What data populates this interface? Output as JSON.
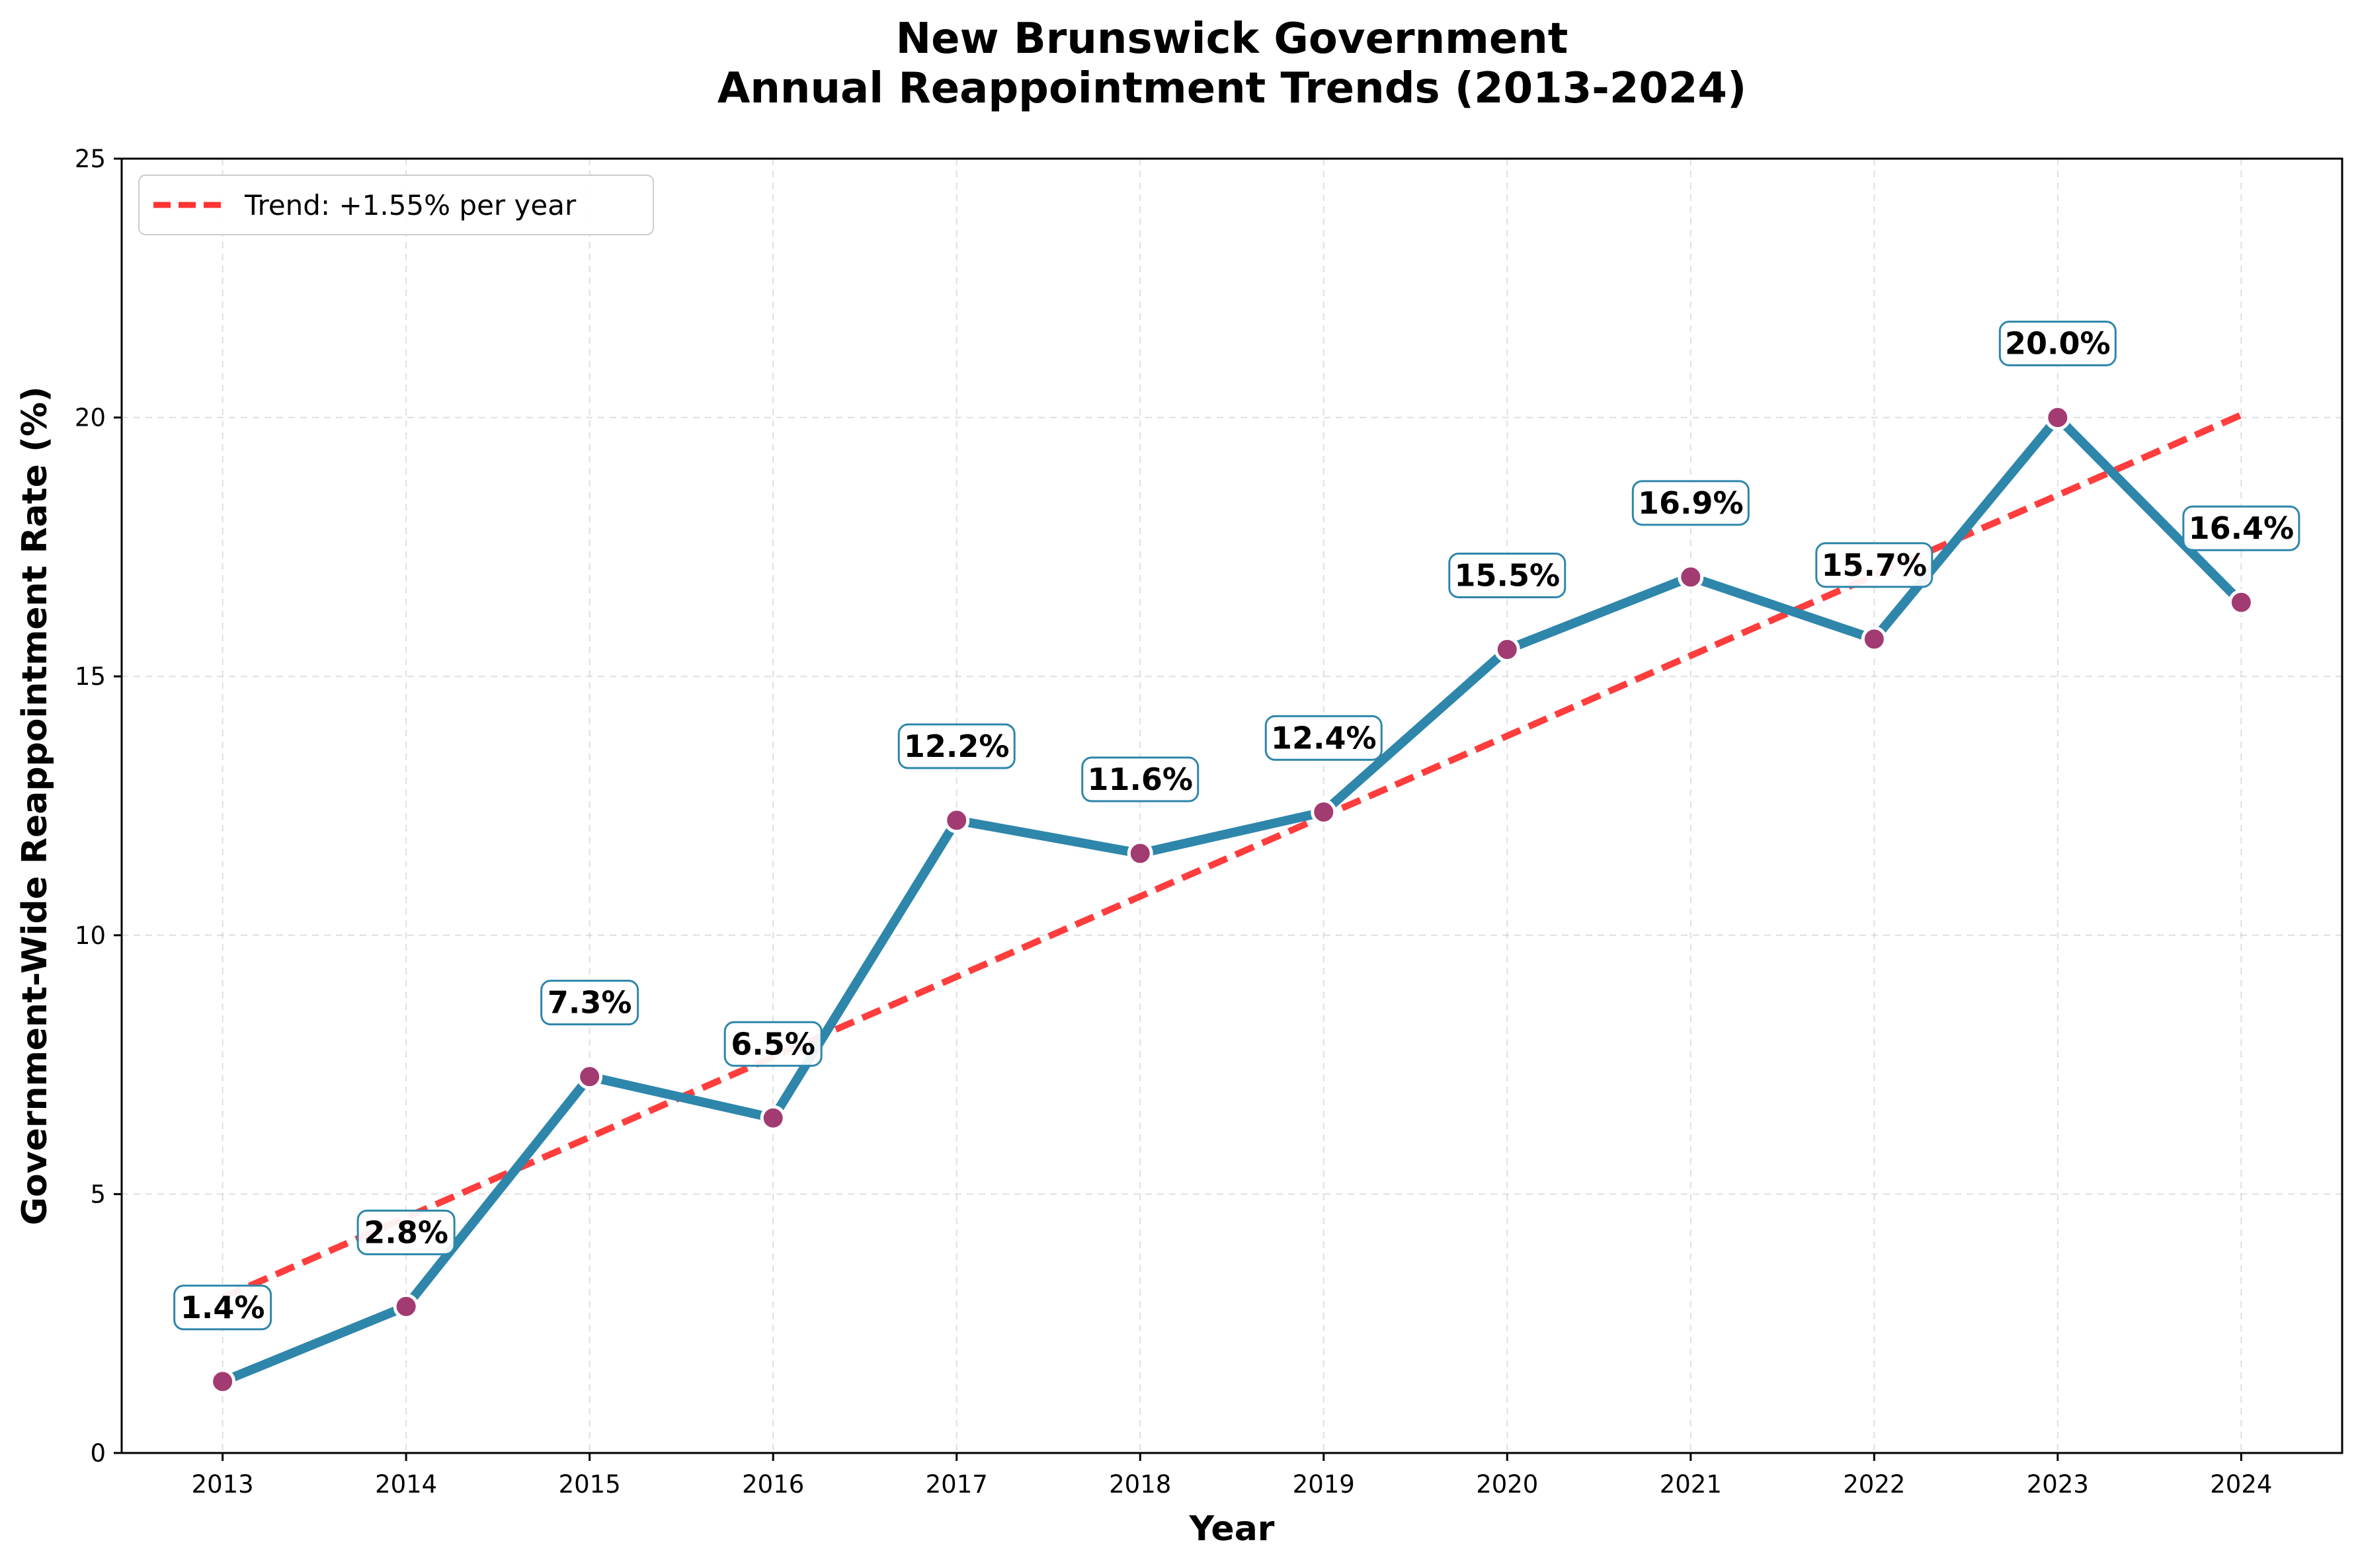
{
  "chart_data": {
    "type": "line",
    "title": "New Brunswick Government\nAnnual Reappointment Trends (2013-2024)",
    "title_lines": [
      "New Brunswick Government",
      "Annual Reappointment Trends (2013-2024)"
    ],
    "xlabel": "Year",
    "ylabel": "Government-Wide Reappointment Rate (%)",
    "x": [
      2013,
      2014,
      2015,
      2016,
      2017,
      2018,
      2019,
      2020,
      2021,
      2022,
      2023,
      2024
    ],
    "xticks": [
      "2013",
      "2014",
      "2015",
      "2016",
      "2017",
      "2018",
      "2019",
      "2020",
      "2021",
      "2022",
      "2023",
      "2024"
    ],
    "ylim": [
      0,
      25
    ],
    "xlim": [
      2012.45,
      2024.55
    ],
    "yticks": [
      "0",
      "5",
      "10",
      "15",
      "20",
      "25"
    ],
    "grid": true,
    "legend_position": "top-left",
    "series": [
      {
        "values": [
          1.38,
          2.83,
          7.27,
          6.47,
          12.22,
          11.58,
          12.38,
          15.52,
          16.92,
          15.72,
          20.0,
          16.43
        ],
        "labels": [
          "1.4%",
          "2.8%",
          "7.3%",
          "6.5%",
          "12.2%",
          "11.6%",
          "12.4%",
          "15.5%",
          "16.9%",
          "15.7%",
          "20.0%",
          "16.4%"
        ],
        "color": "#2e86ab",
        "marker_color": "#a23b72"
      },
      {
        "name": "Trend: +1.55% per year",
        "type": "trend",
        "values": [
          3.0,
          4.55,
          6.1,
          7.65,
          9.2,
          10.75,
          12.3,
          13.85,
          15.4,
          16.95,
          18.5,
          20.05
        ],
        "color": "#ff3333"
      }
    ]
  }
}
